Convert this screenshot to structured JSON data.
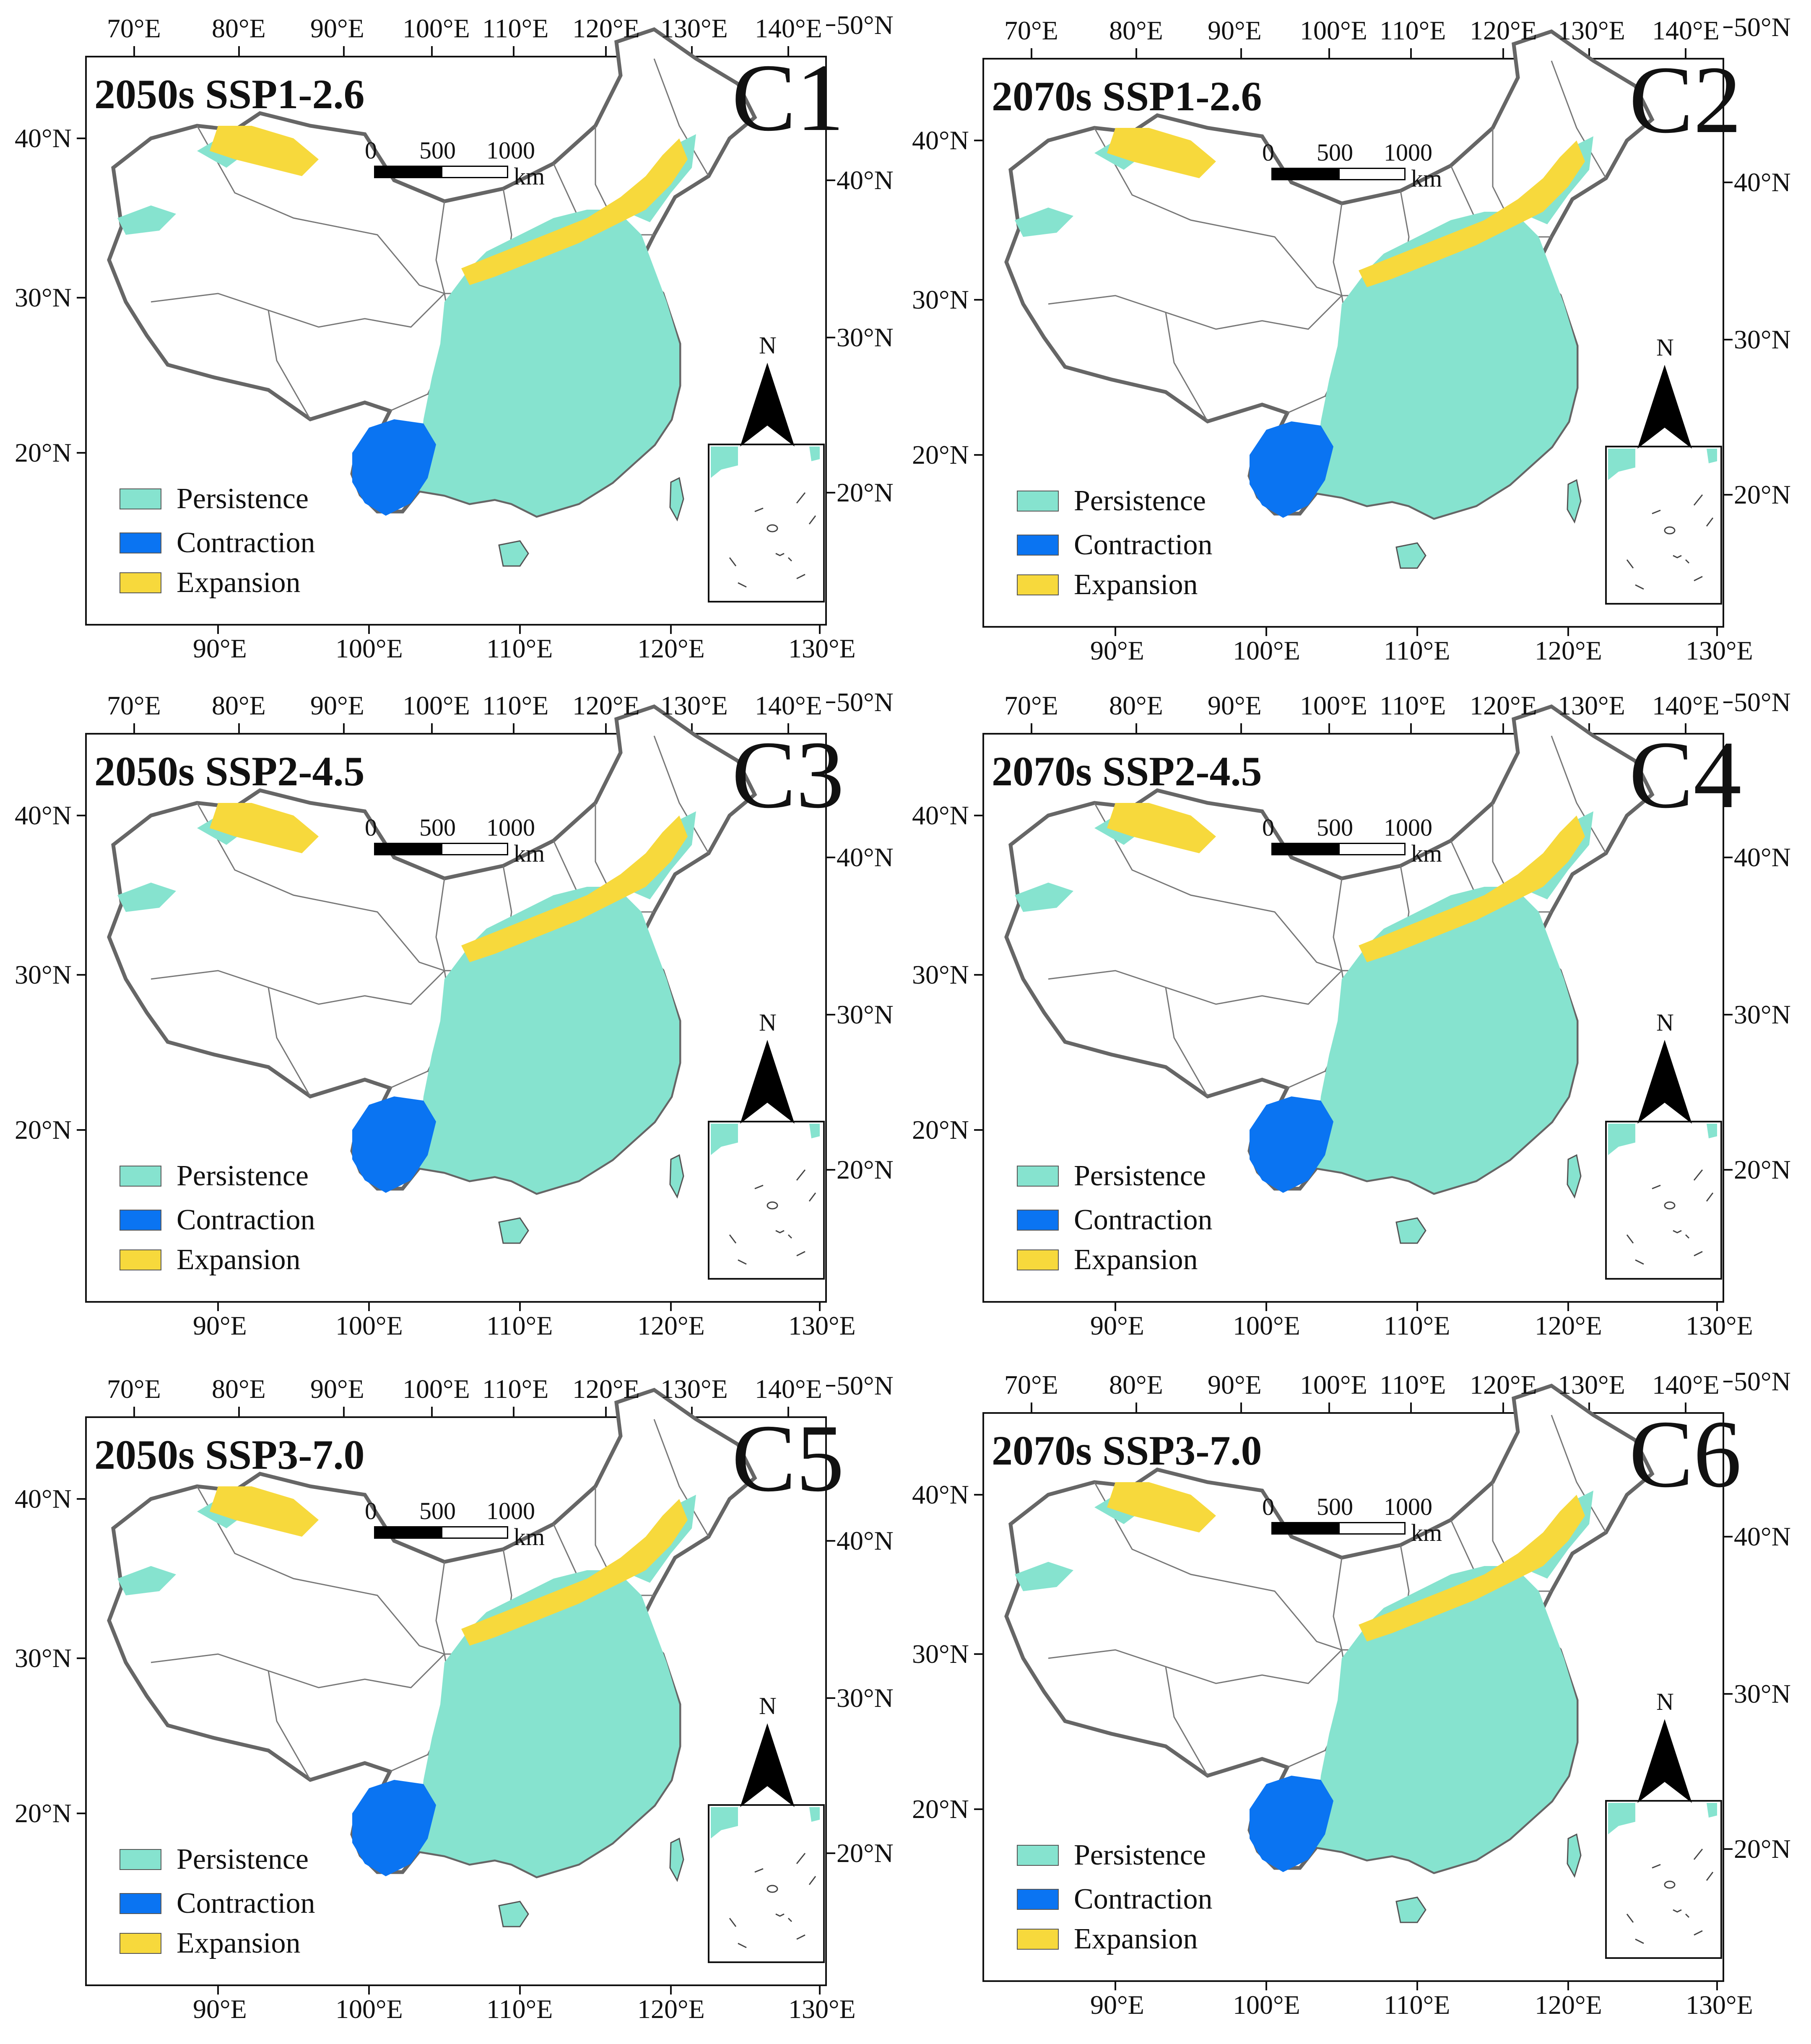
{
  "figure": {
    "top_lon_labels": [
      "70°E",
      "80°E",
      "90°E",
      "100°E",
      "110°E",
      "120°E",
      "130°E",
      "140°E"
    ],
    "bottom_lon_labels": [
      "90°E",
      "100°E",
      "110°E",
      "120°E",
      "130°E"
    ],
    "left_lat_labels": [
      "40°N",
      "30°N",
      "20°N"
    ],
    "right_lat_labels": [
      "50°N",
      "40°N",
      "30°N",
      "20°N"
    ],
    "legend": [
      {
        "label": "Persistence",
        "color": "#86e3cf"
      },
      {
        "label": "Contraction",
        "color": "#0a74f2"
      },
      {
        "label": "Expansion",
        "color": "#f7d93c"
      }
    ],
    "scale_bar": {
      "ticks": [
        "0",
        "500",
        "1000"
      ],
      "unit": "km"
    },
    "north_label": "N",
    "colors": {
      "persistence": "#86e3cf",
      "contraction": "#0a74f2",
      "expansion": "#f7d93c",
      "border": "#666666"
    }
  },
  "panels": [
    {
      "title": "2050s SSP1-2.6",
      "id": "C1"
    },
    {
      "title": "2070s SSP1-2.6",
      "id": "C2"
    },
    {
      "title": "2050s SSP2-4.5",
      "id": "C3"
    },
    {
      "title": "2070s SSP2-4.5",
      "id": "C4"
    },
    {
      "title": "2050s SSP3-7.0",
      "id": "C5"
    },
    {
      "title": "2070s SSP3-7.0",
      "id": "C6"
    }
  ]
}
